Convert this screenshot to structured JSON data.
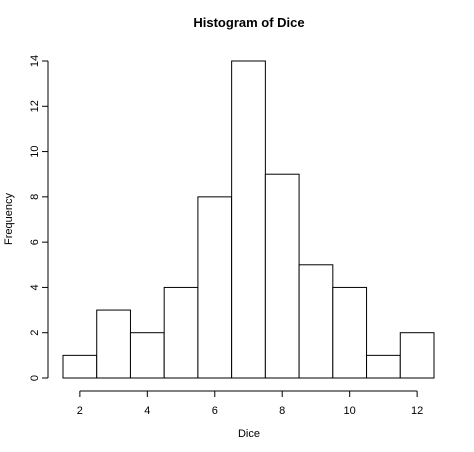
{
  "chart_data": {
    "type": "bar",
    "title": "Histogram of Dice",
    "xlabel": "Dice",
    "ylabel": "Frequency",
    "bins": [
      {
        "start": 1.5,
        "end": 2.5,
        "count": 1
      },
      {
        "start": 2.5,
        "end": 3.5,
        "count": 3
      },
      {
        "start": 3.5,
        "end": 4.5,
        "count": 2
      },
      {
        "start": 4.5,
        "end": 5.5,
        "count": 4
      },
      {
        "start": 5.5,
        "end": 6.5,
        "count": 8
      },
      {
        "start": 6.5,
        "end": 7.5,
        "count": 14
      },
      {
        "start": 7.5,
        "end": 8.5,
        "count": 9
      },
      {
        "start": 8.5,
        "end": 9.5,
        "count": 5
      },
      {
        "start": 9.5,
        "end": 10.5,
        "count": 4
      },
      {
        "start": 10.5,
        "end": 11.5,
        "count": 1
      },
      {
        "start": 11.5,
        "end": 12.5,
        "count": 2
      }
    ],
    "xlim": [
      1.5,
      12.5
    ],
    "ylim": [
      0,
      14
    ],
    "x_ticks": [
      "2",
      "4",
      "6",
      "8",
      "10",
      "12"
    ],
    "y_ticks": [
      "0",
      "2",
      "4",
      "6",
      "8",
      "10",
      "12",
      "14"
    ],
    "grid": false,
    "legend": "none"
  }
}
